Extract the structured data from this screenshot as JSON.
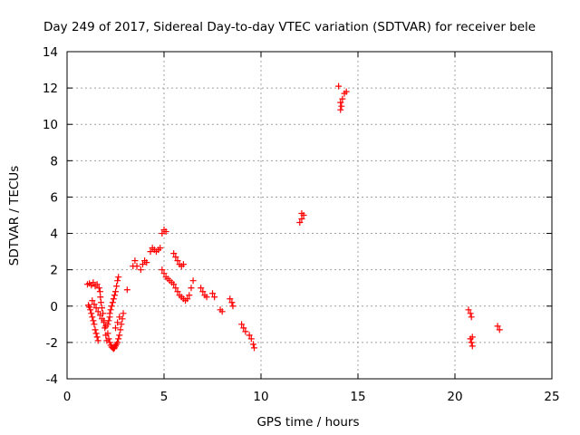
{
  "chart_data": {
    "type": "scatter",
    "title": "Day 249 of 2017, Sidereal Day-to-day VTEC variation (SDTVAR) for receiver bele",
    "xlabel": "GPS time / hours",
    "ylabel": "SDTVAR / TECUs",
    "xlim": [
      0,
      25
    ],
    "ylim": [
      -4,
      14
    ],
    "xticks": [
      0,
      5,
      10,
      15,
      20,
      25
    ],
    "yticks": [
      -4,
      -2,
      0,
      2,
      4,
      6,
      8,
      10,
      12,
      14
    ],
    "xtick_labels": [
      "0",
      "5",
      "10",
      "15",
      "20",
      "25"
    ],
    "ytick_labels": [
      "-4",
      "-2",
      "0",
      "2",
      "4",
      "6",
      "8",
      "10",
      "12",
      "14"
    ],
    "grid": true,
    "marker": "+",
    "colors": {
      "points": "#ff0000",
      "grid": "#a0a0a0",
      "axes": "#000000"
    },
    "series": [
      {
        "name": "bele",
        "points": [
          [
            1.05,
            1.2
          ],
          [
            1.15,
            1.25
          ],
          [
            1.25,
            1.15
          ],
          [
            1.35,
            1.3
          ],
          [
            1.45,
            1.1
          ],
          [
            1.55,
            1.2
          ],
          [
            1.65,
            1.0
          ],
          [
            1.7,
            0.8
          ],
          [
            1.72,
            0.5
          ],
          [
            1.75,
            0.2
          ],
          [
            1.8,
            -0.1
          ],
          [
            1.85,
            -0.4
          ],
          [
            1.9,
            -0.8
          ],
          [
            1.95,
            -1.2
          ],
          [
            2.0,
            -1.6
          ],
          [
            2.05,
            -1.9
          ],
          [
            1.1,
            0.05
          ],
          [
            1.15,
            -0.05
          ],
          [
            1.2,
            -0.2
          ],
          [
            1.25,
            -0.4
          ],
          [
            1.3,
            -0.6
          ],
          [
            1.35,
            -0.8
          ],
          [
            1.4,
            -1.0
          ],
          [
            1.45,
            -1.3
          ],
          [
            1.5,
            -1.5
          ],
          [
            1.55,
            -1.7
          ],
          [
            1.6,
            -1.9
          ],
          [
            1.3,
            0.3
          ],
          [
            1.4,
            0.1
          ],
          [
            1.5,
            -0.1
          ],
          [
            1.6,
            -0.3
          ],
          [
            1.7,
            -0.5
          ],
          [
            1.8,
            -0.7
          ],
          [
            1.9,
            -0.9
          ],
          [
            2.0,
            -1.1
          ],
          [
            2.1,
            -1.5
          ],
          [
            2.15,
            -1.8
          ],
          [
            2.2,
            -2.0
          ],
          [
            2.25,
            -2.15
          ],
          [
            2.3,
            -2.25
          ],
          [
            2.35,
            -2.3
          ],
          [
            2.4,
            -2.35
          ],
          [
            2.45,
            -2.3
          ],
          [
            2.5,
            -2.2
          ],
          [
            2.55,
            -2.1
          ],
          [
            2.6,
            -2.0
          ],
          [
            2.65,
            -1.8
          ],
          [
            2.7,
            -1.6
          ],
          [
            2.75,
            -1.3
          ],
          [
            2.8,
            -1.0
          ],
          [
            2.85,
            -0.7
          ],
          [
            2.9,
            -0.4
          ],
          [
            2.2,
            -0.4
          ],
          [
            2.25,
            -0.2
          ],
          [
            2.3,
            0.0
          ],
          [
            2.35,
            0.2
          ],
          [
            2.4,
            0.4
          ],
          [
            2.45,
            0.6
          ],
          [
            2.5,
            0.8
          ],
          [
            2.55,
            1.1
          ],
          [
            2.6,
            1.4
          ],
          [
            2.65,
            1.6
          ],
          [
            2.1,
            -1.0
          ],
          [
            2.15,
            -0.8
          ],
          [
            2.2,
            -0.6
          ],
          [
            2.5,
            -1.2
          ],
          [
            2.6,
            -0.9
          ],
          [
            2.7,
            -0.6
          ],
          [
            3.1,
            0.9
          ],
          [
            3.4,
            2.2
          ],
          [
            3.5,
            2.5
          ],
          [
            3.6,
            2.2
          ],
          [
            3.8,
            2.0
          ],
          [
            3.9,
            2.3
          ],
          [
            4.0,
            2.5
          ],
          [
            4.1,
            2.4
          ],
          [
            4.3,
            3.0
          ],
          [
            4.4,
            3.2
          ],
          [
            4.5,
            3.1
          ],
          [
            4.6,
            3.0
          ],
          [
            4.7,
            3.1
          ],
          [
            4.8,
            3.2
          ],
          [
            4.9,
            4.0
          ],
          [
            5.0,
            4.2
          ],
          [
            5.1,
            4.1
          ],
          [
            4.9,
            2.0
          ],
          [
            5.0,
            1.8
          ],
          [
            5.1,
            1.6
          ],
          [
            5.2,
            1.5
          ],
          [
            5.3,
            1.4
          ],
          [
            5.4,
            1.3
          ],
          [
            5.5,
            1.2
          ],
          [
            5.6,
            1.0
          ],
          [
            5.7,
            0.8
          ],
          [
            5.8,
            0.6
          ],
          [
            5.9,
            0.5
          ],
          [
            6.0,
            0.4
          ],
          [
            6.1,
            0.3
          ],
          [
            6.2,
            0.4
          ],
          [
            6.3,
            0.6
          ],
          [
            6.4,
            1.0
          ],
          [
            6.5,
            1.4
          ],
          [
            5.5,
            2.9
          ],
          [
            5.6,
            2.7
          ],
          [
            5.7,
            2.5
          ],
          [
            5.8,
            2.3
          ],
          [
            5.9,
            2.2
          ],
          [
            6.0,
            2.3
          ],
          [
            6.9,
            1.0
          ],
          [
            7.0,
            0.8
          ],
          [
            7.1,
            0.6
          ],
          [
            7.2,
            0.5
          ],
          [
            7.5,
            0.7
          ],
          [
            7.6,
            0.5
          ],
          [
            7.9,
            -0.2
          ],
          [
            8.0,
            -0.3
          ],
          [
            8.4,
            0.4
          ],
          [
            8.5,
            0.2
          ],
          [
            8.55,
            0.0
          ],
          [
            9.0,
            -1.0
          ],
          [
            9.1,
            -1.2
          ],
          [
            9.2,
            -1.4
          ],
          [
            9.4,
            -1.6
          ],
          [
            9.5,
            -1.8
          ],
          [
            9.6,
            -2.1
          ],
          [
            9.65,
            -2.3
          ],
          [
            12.0,
            4.6
          ],
          [
            12.1,
            4.8
          ],
          [
            12.2,
            5.0
          ],
          [
            12.1,
            5.1
          ],
          [
            14.0,
            12.1
          ],
          [
            14.1,
            11.2
          ],
          [
            14.2,
            11.4
          ],
          [
            14.3,
            11.7
          ],
          [
            14.4,
            11.8
          ],
          [
            14.1,
            10.8
          ],
          [
            14.15,
            11.0
          ],
          [
            20.7,
            -0.2
          ],
          [
            20.8,
            -0.4
          ],
          [
            20.85,
            -0.6
          ],
          [
            20.8,
            -1.8
          ],
          [
            20.85,
            -2.0
          ],
          [
            20.9,
            -2.2
          ],
          [
            20.9,
            -1.7
          ],
          [
            22.2,
            -1.1
          ],
          [
            22.3,
            -1.3
          ]
        ]
      }
    ]
  }
}
